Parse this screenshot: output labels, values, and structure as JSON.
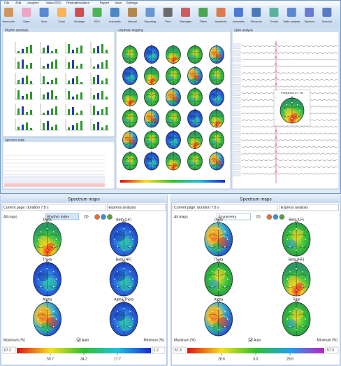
{
  "app": {
    "menu": [
      "File",
      "Edit",
      "Analysis",
      "Video EEG",
      "Photostimulation",
      "Report",
      "View",
      "Settings"
    ],
    "toolbar": [
      "New exam",
      "Open",
      "Save",
      "Close",
      "Montage",
      "EEG",
      "Automatic",
      "Manual",
      "Reporting",
      "Print",
      "Montages",
      "Filters",
      "Amplitude",
      "Automatic",
      "Electrode",
      "Trends",
      "Spike analysis",
      "Spectral",
      "Spectral"
    ],
    "panels": [
      "Rhythm amplitude",
      "Amplitude mapping",
      "Spike analysis",
      "Spectrum table"
    ],
    "popup": "Frequency 6.7 Hz"
  },
  "spectrum_panels": [
    {
      "title": "Spectrum maps",
      "page": "Current page: duration 7.8 s",
      "analysis": "Express analysis",
      "maps": "All maps",
      "mode": "Rhythm index",
      "dim": "2D",
      "labels": [
        "Delta",
        "Beta (LF)",
        "Theta",
        "Beta (HF)",
        "Alpha",
        "Alpha/Theta"
      ],
      "max_label": "Maximum (%)",
      "auto": "Auto",
      "min_label": "Minimum (%)",
      "max_value": "67.2",
      "min_value": "1.2",
      "ticks": [
        "50.7",
        "34.2",
        "17.7"
      ]
    },
    {
      "title": "Spectrum maps",
      "page": "Current page: duration 7.8 s",
      "analysis": "Express analysis",
      "maps": "All maps",
      "mode": "Asymmetry",
      "dim": "2D",
      "labels": [
        "Delta",
        "Beta (LF)",
        "Theta",
        "Beta (HF)",
        "Alpha",
        "Total"
      ],
      "max_label": "Maximum (%)",
      "auto": "Auto",
      "min_label": "Minimum (%)",
      "max_value": "57.3",
      "min_value": "57.3",
      "ticks": [
        "28.6",
        "0.0",
        "28.6"
      ]
    }
  ]
}
